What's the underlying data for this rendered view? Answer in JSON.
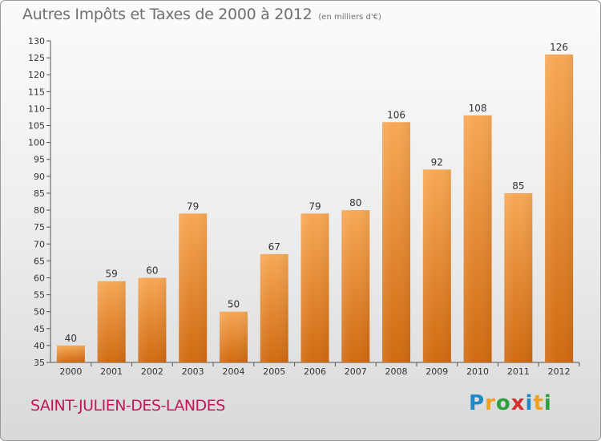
{
  "title": "Autres Impôts et Taxes de 2000 à 2012",
  "subtitle": "(en milliers d'€)",
  "commune": "SAINT-JULIEN-DES-LANDES",
  "logo": {
    "text": "Proxiti",
    "letters": [
      {
        "ch": "P",
        "color": "#1e88c8"
      },
      {
        "ch": "r",
        "color": "#f0a020"
      },
      {
        "ch": "o",
        "color": "#2e9e3e"
      },
      {
        "ch": "x",
        "color": "#d03030"
      },
      {
        "ch": "i",
        "color": "#1e88c8"
      },
      {
        "ch": "t",
        "color": "#f0a020"
      },
      {
        "ch": "i",
        "color": "#2e9e3e"
      }
    ]
  },
  "colors": {
    "bar_top": "#f7a855",
    "bar_bottom": "#d06a10",
    "axis": "#555555",
    "text": "#333333"
  },
  "chart_data": {
    "type": "bar",
    "categories": [
      "2000",
      "2001",
      "2002",
      "2003",
      "2004",
      "2005",
      "2006",
      "2007",
      "2008",
      "2009",
      "2010",
      "2011",
      "2012"
    ],
    "values": [
      40,
      59,
      60,
      79,
      50,
      67,
      79,
      80,
      106,
      92,
      108,
      85,
      126
    ],
    "ylim": [
      35,
      130
    ],
    "yticks": [
      35,
      40,
      45,
      50,
      55,
      60,
      65,
      70,
      75,
      80,
      85,
      90,
      95,
      100,
      105,
      110,
      115,
      120,
      125,
      130
    ],
    "grid": false,
    "data_labels": true
  }
}
